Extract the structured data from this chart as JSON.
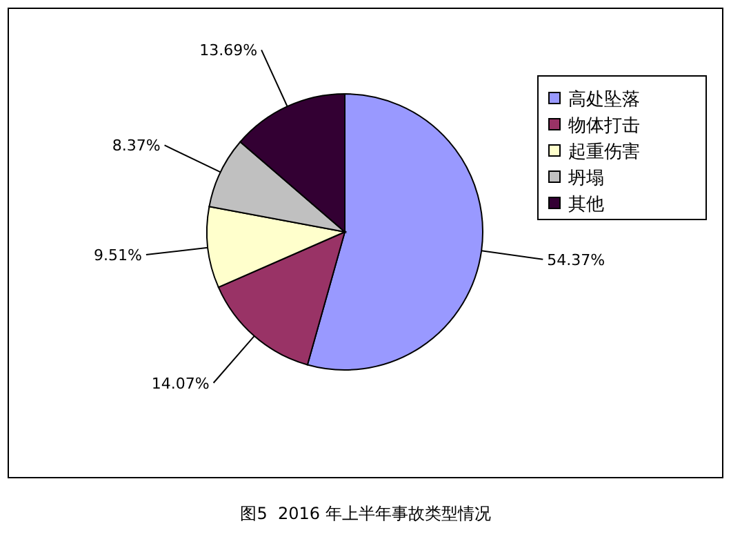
{
  "chart_data": {
    "type": "pie",
    "title": "图5  2016 年上半年事故类型情况",
    "categories": [
      "高处坠落",
      "物体打击",
      "起重伤害",
      "坍塌",
      "其他"
    ],
    "values": [
      54.37,
      14.07,
      9.51,
      8.37,
      13.69
    ],
    "value_labels": [
      "54.37%",
      "14.07%",
      "9.51%",
      "8.37%",
      "13.69%"
    ],
    "colors": [
      "#9999ff",
      "#993366",
      "#ffffcc",
      "#c0c0c0",
      "#330033"
    ],
    "legend": "right"
  }
}
